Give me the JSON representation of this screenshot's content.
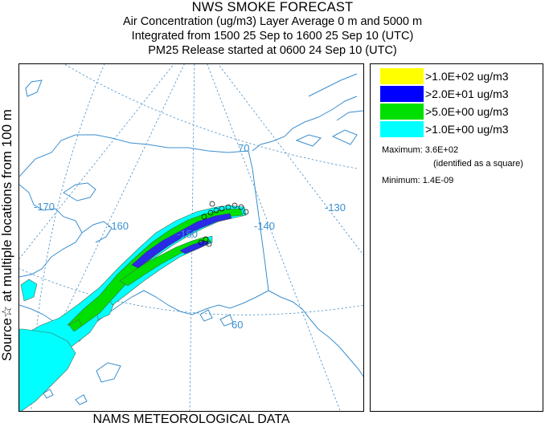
{
  "header": {
    "title": "NWS SMOKE FORECAST",
    "line2": "Air Concentration (ug/m3) Layer Average    0 m and  5000 m",
    "line3": "Integrated from 1500 25 Sep to 1600 25 Sep 10 (UTC)",
    "line4": "PM25 Release started at 0600 24 Sep 10 (UTC)"
  },
  "side_label": "Source☆ at multiple locations   from   100 m",
  "footer": "NAMS METEOROLOGICAL DATA",
  "legend": {
    "items": [
      {
        "label": ">1.0E+02 ug/m3",
        "color": "#ffff00"
      },
      {
        "label": ">2.0E+01 ug/m3",
        "color": "#0000ff"
      },
      {
        "label": ">5.0E+00 ug/m3",
        "color": "#00e000"
      },
      {
        "label": ">1.0E+00 ug/m3",
        "color": "#00ffff"
      }
    ],
    "maximum": "Maximum: 3.6E+02",
    "max_note": "(identified as a square)",
    "minimum": "Minimum: 1.4E-09"
  },
  "map": {
    "grid_labels": {
      "lon_170": "-170",
      "lon_160": "-160",
      "lon_150": "-150",
      "lon_140": "-140",
      "lon_130": "-130",
      "lat_70": "70",
      "lat_60": "60"
    },
    "colors": {
      "grid": "#4a90c8",
      "coast": "#3a8fd0",
      "plume_outline": "#4a6a4a"
    }
  }
}
